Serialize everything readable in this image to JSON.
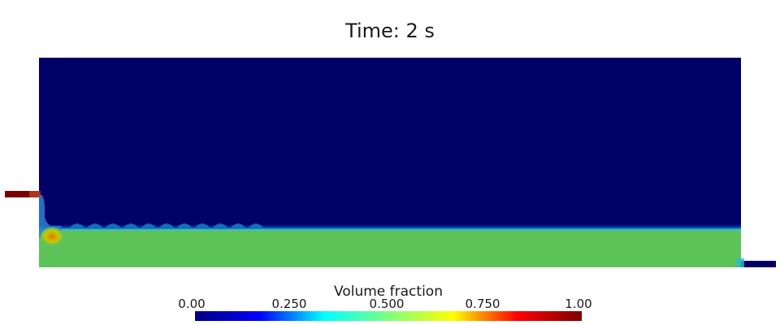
{
  "title": "Time: 2 s",
  "colors": {
    "empty": "#000066",
    "liquid": "#5ec45a",
    "inflow": "#7a0000",
    "blob_core": "#e07a00",
    "blob_edge": "#c8c800",
    "background": "#ffffff"
  },
  "colorbar": {
    "title": "Volume fraction",
    "ticks": [
      "0.00",
      "0.250",
      "0.500",
      "0.750",
      "1.00"
    ],
    "range": [
      0,
      1
    ],
    "colormap": "jet",
    "stops": [
      "#00007f",
      "#0000ff",
      "#00ffff",
      "#7fff7f",
      "#ffff00",
      "#ff0000",
      "#7f0000"
    ]
  },
  "chart_data": {
    "type": "heatmap",
    "title": "Time: 2 s",
    "quantity": "Volume fraction",
    "value_range": [
      0,
      1
    ],
    "regions": [
      {
        "region": "upper",
        "value": 0.0
      },
      {
        "region": "lower",
        "value": 0.52
      },
      {
        "region": "inflow pipe",
        "value": 1.0
      },
      {
        "region": "outflow pipe",
        "value": 0.0
      },
      {
        "region": "inlet blob",
        "value": 0.8
      }
    ]
  }
}
